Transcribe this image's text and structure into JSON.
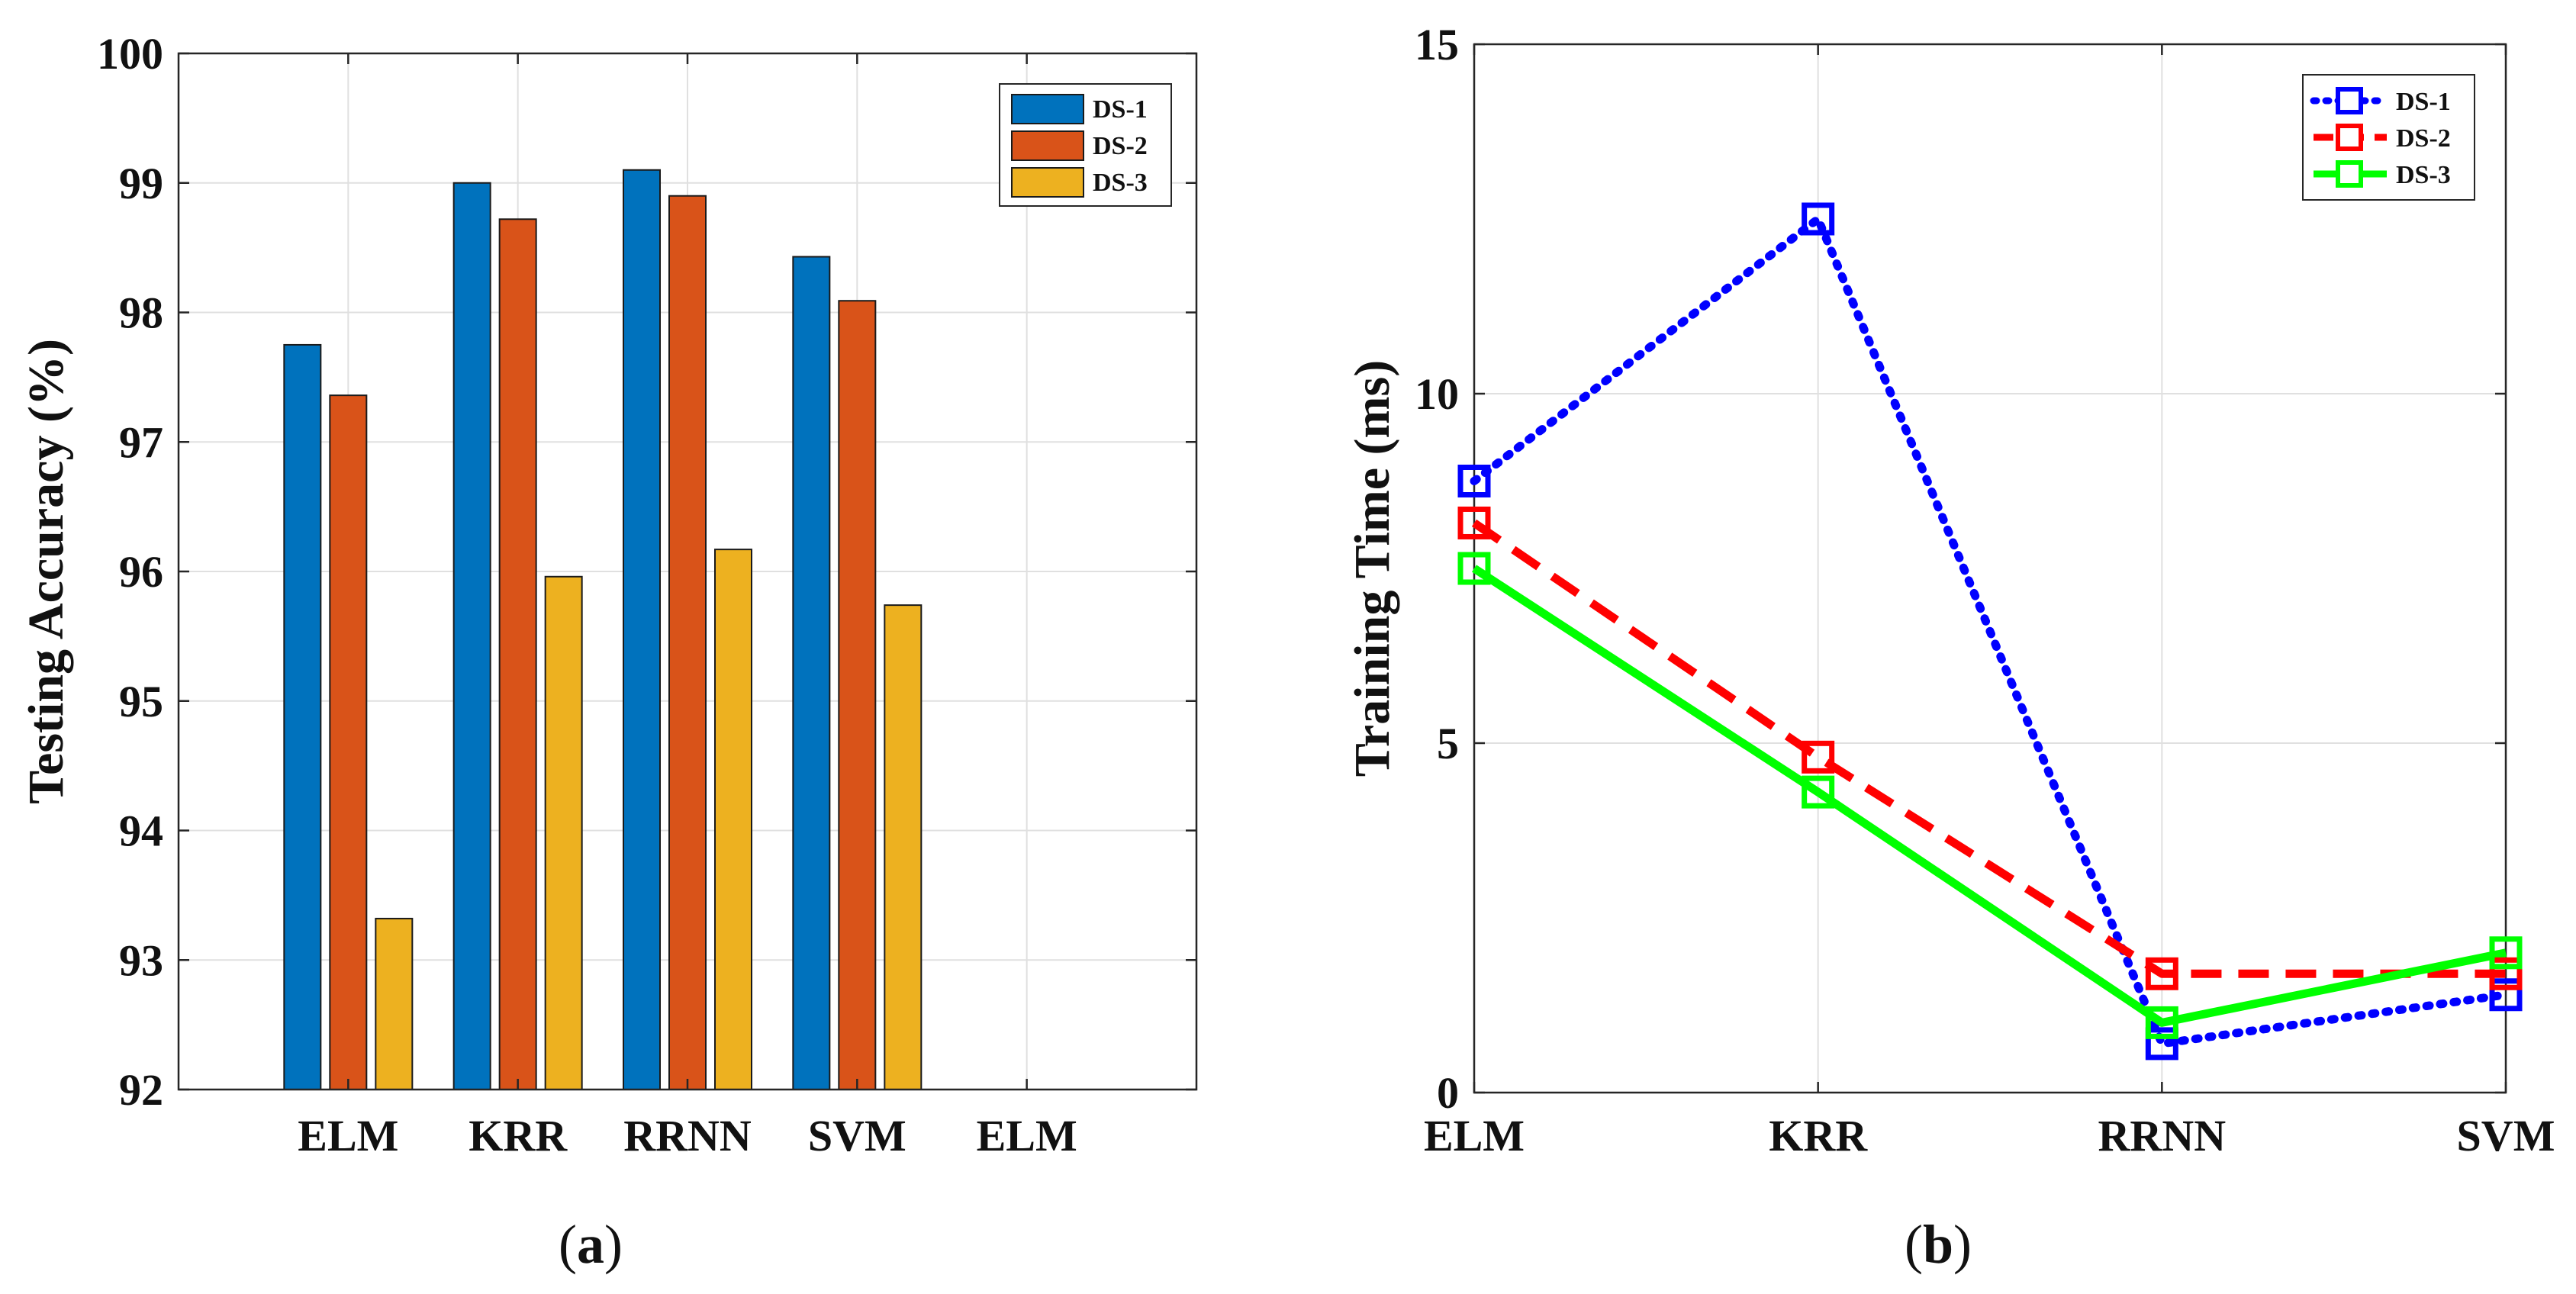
{
  "chart_data": [
    {
      "type": "bar",
      "caption": "a",
      "ylabel": "Testing Accuracy (%)",
      "xlabel": "",
      "ylim": [
        92,
        100
      ],
      "yticks": [
        92,
        93,
        94,
        95,
        96,
        97,
        98,
        99,
        100
      ],
      "xtick_labels": [
        "ELM",
        "KRR",
        "RRNN",
        "SVM",
        "ELM"
      ],
      "categories": [
        "ELM",
        "KRR",
        "RRNN",
        "SVM"
      ],
      "grid": true,
      "legend_position": "top-right",
      "series": [
        {
          "name": "DS-1",
          "color": "#0072BD",
          "values": [
            97.75,
            99.0,
            99.1,
            98.43
          ]
        },
        {
          "name": "DS-2",
          "color": "#D95319",
          "values": [
            97.36,
            98.72,
            98.9,
            98.09
          ]
        },
        {
          "name": "DS-3",
          "color": "#EDB120",
          "values": [
            93.32,
            95.96,
            96.17,
            95.74
          ]
        }
      ]
    },
    {
      "type": "line",
      "caption": "b",
      "ylabel": "Training Time (ms)",
      "xlabel": "",
      "ylim": [
        0,
        15
      ],
      "yticks": [
        0,
        5,
        10,
        15
      ],
      "categories": [
        "ELM",
        "KRR",
        "RRNN",
        "SVM"
      ],
      "grid": true,
      "legend_position": "top-right",
      "series": [
        {
          "name": "DS-1",
          "color": "#0000FF",
          "style": "dotted",
          "marker": "square",
          "values": [
            8.75,
            12.5,
            0.7,
            1.4
          ]
        },
        {
          "name": "DS-2",
          "color": "#FF0000",
          "style": "dashed",
          "marker": "square",
          "values": [
            8.15,
            4.8,
            1.7,
            1.7
          ]
        },
        {
          "name": "DS-3",
          "color": "#00FF00",
          "style": "solid",
          "marker": "square",
          "values": [
            7.5,
            4.3,
            1.0,
            2.0
          ]
        }
      ]
    }
  ]
}
